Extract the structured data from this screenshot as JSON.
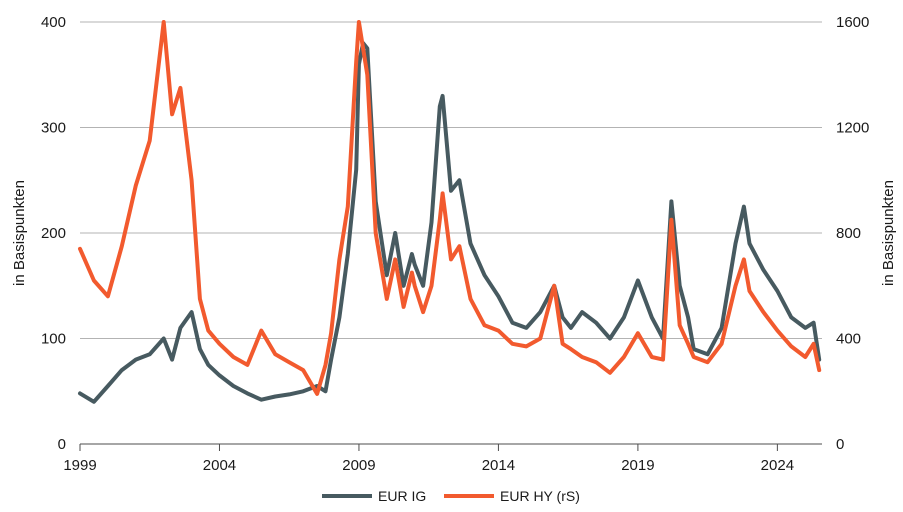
{
  "chart_data": {
    "type": "line",
    "title": "",
    "ylabel": "in Basispunkten",
    "y2label": "in Basispunkten",
    "xlim": [
      1999.0,
      2025.6
    ],
    "ylim": [
      0,
      400
    ],
    "y2lim": [
      0,
      1600
    ],
    "yticks": [
      0,
      100,
      200,
      300,
      400
    ],
    "y2ticks": [
      0,
      400,
      800,
      1200,
      1600
    ],
    "xticks": [
      1999,
      2004,
      2009,
      2014,
      2019,
      2024
    ],
    "grid": "horizontal",
    "legend_position": "bottom",
    "series": [
      {
        "name": "EUR IG",
        "axis": "left",
        "color": "#475a60",
        "x": [
          1999.0,
          1999.5,
          2000.0,
          2000.5,
          2001.0,
          2001.5,
          2002.0,
          2002.3,
          2002.6,
          2003.0,
          2003.3,
          2003.6,
          2004.0,
          2004.5,
          2005.0,
          2005.5,
          2006.0,
          2006.5,
          2007.0,
          2007.5,
          2007.8,
          2008.0,
          2008.3,
          2008.6,
          2008.9,
          2009.0,
          2009.15,
          2009.3,
          2009.6,
          2010.0,
          2010.3,
          2010.6,
          2010.9,
          2011.0,
          2011.3,
          2011.6,
          2011.9,
          2012.0,
          2012.3,
          2012.6,
          2013.0,
          2013.5,
          2014.0,
          2014.5,
          2015.0,
          2015.5,
          2016.0,
          2016.3,
          2016.6,
          2017.0,
          2017.5,
          2018.0,
          2018.5,
          2019.0,
          2019.5,
          2019.9,
          2020.2,
          2020.5,
          2020.8,
          2021.0,
          2021.5,
          2022.0,
          2022.5,
          2022.8,
          2023.0,
          2023.5,
          2024.0,
          2024.5,
          2025.0,
          2025.3,
          2025.5
        ],
        "values": [
          48,
          40,
          55,
          70,
          80,
          85,
          100,
          80,
          110,
          125,
          90,
          75,
          65,
          55,
          48,
          42,
          45,
          47,
          50,
          55,
          50,
          80,
          120,
          180,
          260,
          360,
          380,
          375,
          230,
          160,
          200,
          150,
          180,
          170,
          150,
          210,
          320,
          330,
          240,
          250,
          190,
          160,
          140,
          115,
          110,
          125,
          150,
          120,
          110,
          125,
          115,
          100,
          120,
          155,
          120,
          100,
          230,
          150,
          120,
          90,
          85,
          110,
          190,
          225,
          190,
          165,
          145,
          120,
          110,
          115,
          80
        ]
      },
      {
        "name": "EUR HY (rS)",
        "axis": "right",
        "color": "#f25a2e",
        "x": [
          1999.0,
          1999.5,
          2000.0,
          2000.5,
          2001.0,
          2001.5,
          2002.0,
          2002.3,
          2002.6,
          2003.0,
          2003.3,
          2003.6,
          2004.0,
          2004.5,
          2005.0,
          2005.5,
          2006.0,
          2006.5,
          2007.0,
          2007.5,
          2007.8,
          2008.0,
          2008.3,
          2008.6,
          2008.9,
          2009.0,
          2009.15,
          2009.3,
          2009.6,
          2010.0,
          2010.3,
          2010.6,
          2010.9,
          2011.0,
          2011.3,
          2011.6,
          2011.9,
          2012.0,
          2012.3,
          2012.6,
          2013.0,
          2013.5,
          2014.0,
          2014.5,
          2015.0,
          2015.5,
          2016.0,
          2016.3,
          2016.6,
          2017.0,
          2017.5,
          2018.0,
          2018.5,
          2019.0,
          2019.5,
          2019.9,
          2020.2,
          2020.5,
          2020.8,
          2021.0,
          2021.5,
          2022.0,
          2022.5,
          2022.8,
          2023.0,
          2023.5,
          2024.0,
          2024.5,
          2025.0,
          2025.3,
          2025.5
        ],
        "values": [
          740,
          620,
          560,
          750,
          980,
          1150,
          1600,
          1250,
          1350,
          1000,
          550,
          430,
          380,
          330,
          300,
          430,
          340,
          310,
          280,
          190,
          300,
          420,
          700,
          900,
          1450,
          1600,
          1500,
          1400,
          800,
          550,
          700,
          520,
          650,
          600,
          500,
          600,
          850,
          950,
          700,
          750,
          550,
          450,
          430,
          380,
          370,
          400,
          600,
          380,
          360,
          330,
          310,
          270,
          330,
          420,
          330,
          320,
          850,
          450,
          380,
          330,
          310,
          380,
          600,
          700,
          580,
          500,
          430,
          370,
          330,
          380,
          280
        ]
      }
    ]
  }
}
